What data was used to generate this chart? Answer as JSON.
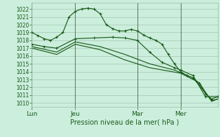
{
  "bg_color": "#cceedd",
  "grid_color": "#99bbaa",
  "line_color": "#1a5c1a",
  "xlabel": "Pression niveau de la mer( hPa )",
  "ylim": [
    1009.5,
    1022.8
  ],
  "yticks": [
    1010,
    1011,
    1012,
    1013,
    1014,
    1015,
    1016,
    1017,
    1018,
    1019,
    1020,
    1021,
    1022
  ],
  "xtick_labels": [
    "Lun",
    "Jeu",
    "Mar",
    "Mer"
  ],
  "xtick_positions": [
    0,
    14,
    34,
    48
  ],
  "xmax": 60,
  "vlines": [
    0,
    14,
    34,
    48
  ],
  "series": [
    {
      "x": [
        0,
        2,
        4,
        6,
        8,
        10,
        12,
        14,
        16,
        18,
        20,
        22,
        24,
        26,
        28,
        30,
        32,
        34,
        36,
        38,
        40,
        42,
        44,
        46,
        48,
        50,
        52,
        54,
        56,
        58,
        60
      ],
      "y": [
        1019,
        1018.6,
        1018.2,
        1018,
        1018.4,
        1019,
        1021,
        1021.7,
        1022,
        1022.1,
        1022,
        1021.4,
        1020,
        1019.5,
        1019.2,
        1019.2,
        1019.4,
        1019.2,
        1018.7,
        1018.3,
        1018,
        1017.5,
        1016.2,
        1015,
        1014,
        1013.5,
        1013.2,
        1012.5,
        1011.2,
        1010.5,
        1010.8
      ],
      "marker": true
    },
    {
      "x": [
        0,
        4,
        8,
        14,
        20,
        26,
        30,
        34,
        38,
        42,
        46,
        48,
        52,
        56,
        60
      ],
      "y": [
        1017.5,
        1017.2,
        1017,
        1018.2,
        1018.3,
        1018.4,
        1018.3,
        1018,
        1016.5,
        1015.2,
        1014.5,
        1014.2,
        1013.5,
        1010.8,
        1010.8
      ],
      "marker": true
    },
    {
      "x": [
        0,
        8,
        14,
        22,
        30,
        38,
        46,
        52,
        58,
        60
      ],
      "y": [
        1017.2,
        1016.5,
        1017.8,
        1017.2,
        1016.2,
        1015,
        1014.2,
        1013.2,
        1010.3,
        1010.5
      ],
      "marker": false
    },
    {
      "x": [
        0,
        8,
        14,
        22,
        30,
        38,
        48,
        54,
        58,
        60
      ],
      "y": [
        1017,
        1016.2,
        1017.5,
        1016.8,
        1015.5,
        1014.5,
        1013.8,
        1012.6,
        1010.2,
        1010.5
      ],
      "marker": false
    }
  ]
}
